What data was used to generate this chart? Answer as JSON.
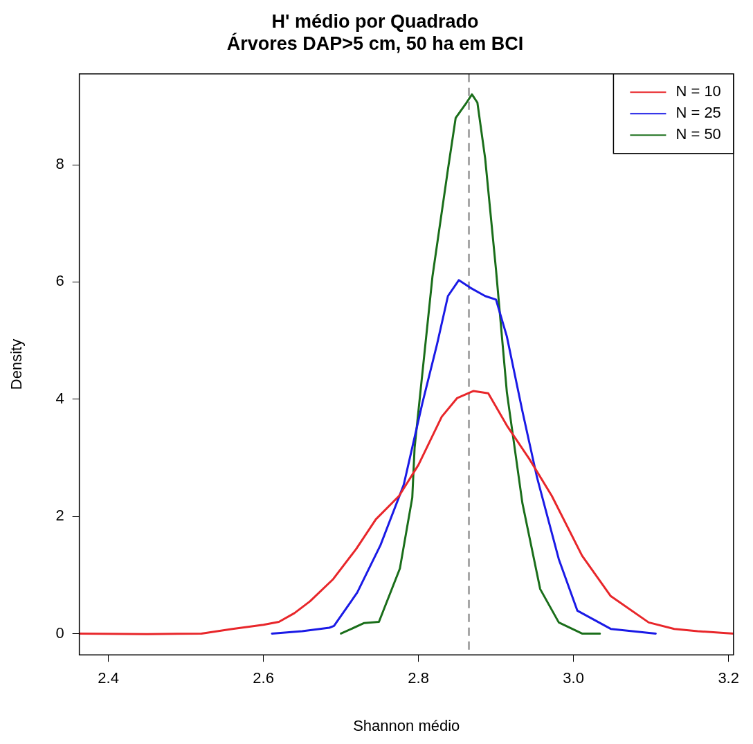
{
  "chart_data": {
    "type": "line",
    "title": "H' médio por Quadrado\nÁrvores DAP>5 cm, 50 ha em BCI",
    "xlabel": "Shannon médio",
    "ylabel": "Density",
    "xlim": [
      2.3625,
      3.2064
    ],
    "xticks": [
      2.4,
      2.6,
      2.8,
      {
        "value": 3.0,
        "label": "3.0"
      },
      3.2
    ],
    "ylim": [
      -0.363,
      9.55
    ],
    "yticks": [
      0,
      2,
      4,
      6,
      8
    ],
    "grid": false,
    "legend": "top right",
    "marker": "none",
    "line_style": "solid",
    "ref_lines": [
      {
        "axis": "x",
        "value": 2.865,
        "color": "#a6a6a6",
        "line_style": "dashed"
      }
    ],
    "series": [
      {
        "name": "N = 10",
        "color": "#e8262a",
        "x": [
          2.3625,
          2.45,
          2.52,
          2.56,
          2.6,
          2.62,
          2.64,
          2.66,
          2.69,
          2.72,
          2.745,
          2.775,
          2.8,
          2.83,
          2.85,
          2.871,
          2.89,
          2.914,
          2.943,
          2.972,
          3.011,
          3.048,
          3.097,
          3.13,
          3.16,
          3.2064
        ],
        "values": [
          0,
          -0.01,
          0,
          0.08,
          0.15,
          0.2,
          0.35,
          0.55,
          0.93,
          1.45,
          1.95,
          2.35,
          2.88,
          3.7,
          4.02,
          4.14,
          4.1,
          3.55,
          2.98,
          2.35,
          1.33,
          0.64,
          0.19,
          0.08,
          0.04,
          0
        ]
      },
      {
        "name": "N = 25",
        "color": "#1a1ae6",
        "x": [
          2.611,
          2.65,
          2.685,
          2.691,
          2.721,
          2.751,
          2.781,
          2.805,
          2.824,
          2.838,
          2.852,
          2.867,
          2.886,
          2.9,
          2.914,
          2.934,
          2.953,
          2.981,
          3.005,
          3.048,
          3.106
        ],
        "values": [
          0,
          0.04,
          0.1,
          0.13,
          0.7,
          1.51,
          2.54,
          3.93,
          4.94,
          5.76,
          6.03,
          5.9,
          5.76,
          5.7,
          5.07,
          3.8,
          2.66,
          1.27,
          0.39,
          0.08,
          0
        ]
      },
      {
        "name": "N = 50",
        "color": "#1a6e1a",
        "x": [
          2.7,
          2.73,
          2.749,
          2.776,
          2.792,
          2.795,
          2.818,
          2.838,
          2.848,
          2.862,
          2.869,
          2.876,
          2.886,
          2.9,
          2.914,
          2.934,
          2.957,
          2.981,
          3.011,
          3.034
        ],
        "values": [
          0,
          0.18,
          0.2,
          1.11,
          2.32,
          3.17,
          6.09,
          7.92,
          8.8,
          9.06,
          9.2,
          9.06,
          8.11,
          6.21,
          4.12,
          2.23,
          0.76,
          0.19,
          0,
          0
        ]
      }
    ]
  }
}
